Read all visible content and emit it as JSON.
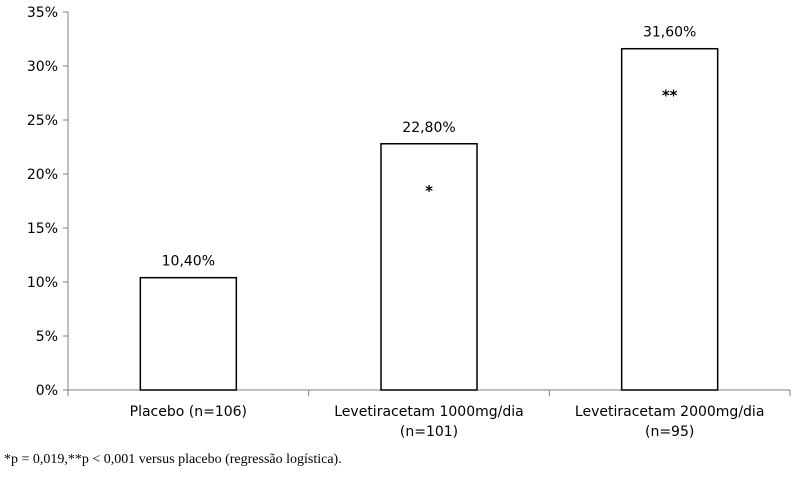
{
  "chart_data": {
    "type": "bar",
    "categories": [
      [
        "Placebo (n=106)"
      ],
      [
        "Levetiracetam 1000mg/dia",
        "(n=101)"
      ],
      [
        "Levetiracetam 2000mg/dia",
        "(n=95)"
      ]
    ],
    "values": [
      10.4,
      22.8,
      31.6
    ],
    "data_labels": [
      "10,40%",
      "22,80%",
      "31,60%"
    ],
    "significance": [
      "",
      "*",
      "**"
    ],
    "y_ticks": [
      "0%",
      "5%",
      "10%",
      "15%",
      "20%",
      "25%",
      "30%",
      "35%"
    ],
    "ylim": [
      0,
      35
    ],
    "y_step": 5,
    "grid": false,
    "bar_fill": "#ffffff",
    "bar_stroke": "#000000"
  },
  "footnote": "*p = 0,019,**p < 0,001 versus placebo (regressão logística)."
}
